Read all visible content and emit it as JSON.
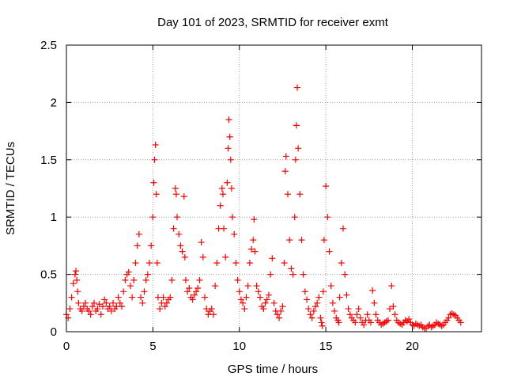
{
  "chart_data": {
    "type": "scatter",
    "title": "Day 101 of 2023, SRMTID for receiver exmt",
    "xlabel": "GPS time / hours",
    "ylabel": "SRMTID / TECUs",
    "xlim": [
      0,
      24
    ],
    "ylim": [
      0,
      2.5
    ],
    "xticks": [
      0,
      5,
      10,
      15,
      20
    ],
    "yticks": [
      0,
      0.5,
      1,
      1.5,
      2,
      2.5
    ],
    "xtick_labels": [
      "0",
      "5",
      "10",
      "15",
      "20"
    ],
    "ytick_labels": [
      "0",
      "0.5",
      "1",
      "1.5",
      "2",
      "2.5"
    ],
    "grid": true,
    "marker": "+",
    "series_color": "#ff0000",
    "series": [
      {
        "name": "SRMTID",
        "x": [
          0.0,
          0.1,
          0.2,
          0.3,
          0.4,
          0.5,
          0.55,
          0.6,
          0.65,
          0.7,
          0.8,
          0.9,
          1.0,
          1.1,
          1.2,
          1.3,
          1.4,
          1.5,
          1.6,
          1.7,
          1.8,
          1.9,
          2.0,
          2.1,
          2.2,
          2.3,
          2.4,
          2.5,
          2.6,
          2.7,
          2.8,
          2.9,
          3.0,
          3.1,
          3.2,
          3.3,
          3.4,
          3.5,
          3.6,
          3.7,
          3.8,
          3.9,
          4.0,
          4.1,
          4.2,
          4.3,
          4.4,
          4.5,
          4.6,
          4.7,
          4.8,
          4.9,
          5.0,
          5.05,
          5.1,
          5.15,
          5.2,
          5.25,
          5.3,
          5.4,
          5.5,
          5.6,
          5.7,
          5.8,
          5.9,
          6.0,
          6.1,
          6.2,
          6.3,
          6.35,
          6.4,
          6.5,
          6.6,
          6.7,
          6.8,
          6.85,
          6.9,
          7.0,
          7.1,
          7.2,
          7.3,
          7.4,
          7.5,
          7.6,
          7.7,
          7.8,
          7.9,
          8.0,
          8.1,
          8.2,
          8.3,
          8.4,
          8.5,
          8.6,
          8.7,
          8.8,
          8.9,
          9.0,
          9.05,
          9.1,
          9.2,
          9.3,
          9.35,
          9.4,
          9.45,
          9.5,
          9.55,
          9.6,
          9.7,
          9.8,
          9.9,
          10.0,
          10.1,
          10.2,
          10.3,
          10.4,
          10.5,
          10.6,
          10.7,
          10.8,
          10.85,
          10.9,
          11.0,
          11.1,
          11.2,
          11.3,
          11.4,
          11.5,
          11.6,
          11.7,
          11.8,
          11.9,
          12.0,
          12.1,
          12.2,
          12.3,
          12.4,
          12.5,
          12.6,
          12.65,
          12.7,
          12.8,
          12.9,
          13.0,
          13.1,
          13.2,
          13.25,
          13.3,
          13.35,
          13.4,
          13.5,
          13.6,
          13.7,
          13.8,
          13.9,
          14.0,
          14.1,
          14.2,
          14.3,
          14.4,
          14.5,
          14.6,
          14.7,
          14.75,
          14.8,
          14.85,
          14.9,
          15.0,
          15.1,
          15.2,
          15.3,
          15.4,
          15.5,
          15.6,
          15.7,
          15.75,
          15.8,
          15.9,
          16.0,
          16.1,
          16.2,
          16.3,
          16.4,
          16.5,
          16.6,
          16.7,
          16.8,
          16.9,
          17.0,
          17.1,
          17.2,
          17.3,
          17.4,
          17.5,
          17.6,
          17.7,
          17.8,
          17.9,
          18.0,
          18.1,
          18.2,
          18.3,
          18.4,
          18.5,
          18.6,
          18.7,
          18.8,
          18.9,
          19.0,
          19.1,
          19.2,
          19.3,
          19.4,
          19.5,
          19.6,
          19.7,
          19.8,
          19.9,
          20.0,
          20.1,
          20.2,
          20.3,
          20.4,
          20.5,
          20.6,
          20.7,
          20.8,
          20.9,
          21.0,
          21.1,
          21.2,
          21.3,
          21.4,
          21.5,
          21.6,
          21.7,
          21.8,
          21.9,
          22.0,
          22.1,
          22.2,
          22.3,
          22.4,
          22.5,
          22.6,
          22.7,
          22.8
        ],
        "y": [
          0.15,
          0.12,
          0.2,
          0.3,
          0.42,
          0.5,
          0.53,
          0.45,
          0.35,
          0.25,
          0.2,
          0.18,
          0.22,
          0.25,
          0.2,
          0.18,
          0.15,
          0.22,
          0.25,
          0.18,
          0.2,
          0.24,
          0.15,
          0.22,
          0.28,
          0.25,
          0.2,
          0.22,
          0.18,
          0.25,
          0.2,
          0.22,
          0.3,
          0.25,
          0.22,
          0.35,
          0.45,
          0.5,
          0.52,
          0.4,
          0.3,
          0.45,
          0.6,
          0.75,
          0.85,
          0.3,
          0.25,
          0.35,
          0.45,
          0.5,
          0.6,
          0.75,
          1.0,
          1.3,
          1.5,
          1.63,
          1.2,
          0.6,
          0.3,
          0.2,
          0.25,
          0.3,
          0.22,
          0.25,
          0.28,
          0.3,
          0.45,
          0.9,
          1.25,
          1.2,
          1.0,
          0.85,
          0.75,
          0.7,
          1.18,
          0.65,
          0.45,
          0.35,
          0.38,
          0.3,
          0.28,
          0.32,
          0.35,
          0.38,
          0.45,
          0.78,
          0.65,
          0.3,
          0.2,
          0.15,
          0.18,
          0.2,
          0.15,
          0.4,
          0.6,
          0.9,
          1.1,
          1.25,
          1.2,
          0.9,
          0.65,
          1.3,
          1.6,
          1.85,
          1.7,
          1.5,
          1.25,
          1.0,
          0.85,
          0.6,
          0.45,
          0.35,
          0.28,
          0.25,
          0.2,
          0.3,
          0.4,
          0.6,
          0.72,
          0.8,
          0.98,
          0.7,
          0.4,
          0.35,
          0.3,
          0.22,
          0.2,
          0.25,
          0.28,
          0.32,
          0.5,
          0.64,
          0.25,
          0.18,
          0.15,
          0.12,
          0.18,
          0.22,
          0.6,
          1.4,
          1.53,
          1.2,
          0.8,
          0.55,
          0.5,
          1.0,
          1.5,
          1.8,
          2.13,
          1.6,
          1.2,
          0.8,
          0.5,
          0.35,
          0.28,
          0.2,
          0.15,
          0.12,
          0.18,
          0.22,
          0.25,
          0.3,
          0.12,
          0.08,
          0.05,
          0.35,
          0.8,
          1.27,
          1.0,
          0.7,
          0.4,
          0.25,
          0.18,
          0.12,
          0.1,
          0.08,
          0.3,
          0.6,
          0.9,
          0.5,
          0.32,
          0.2,
          0.15,
          0.12,
          0.1,
          0.08,
          0.15,
          0.2,
          0.12,
          0.08,
          0.06,
          0.1,
          0.15,
          0.1,
          0.08,
          0.36,
          0.25,
          0.15,
          0.1,
          0.08,
          0.06,
          0.07,
          0.08,
          0.09,
          0.1,
          0.2,
          0.4,
          0.22,
          0.15,
          0.1,
          0.08,
          0.07,
          0.06,
          0.08,
          0.1,
          0.09,
          0.11,
          0.08,
          0.06,
          0.05,
          0.07,
          0.06,
          0.05,
          0.06,
          0.04,
          0.03,
          0.03,
          0.05,
          0.06,
          0.04,
          0.05,
          0.06,
          0.08,
          0.07,
          0.06,
          0.05,
          0.06,
          0.08,
          0.1,
          0.12,
          0.15,
          0.16,
          0.15,
          0.14,
          0.12,
          0.1,
          0.08
        ]
      }
    ]
  }
}
